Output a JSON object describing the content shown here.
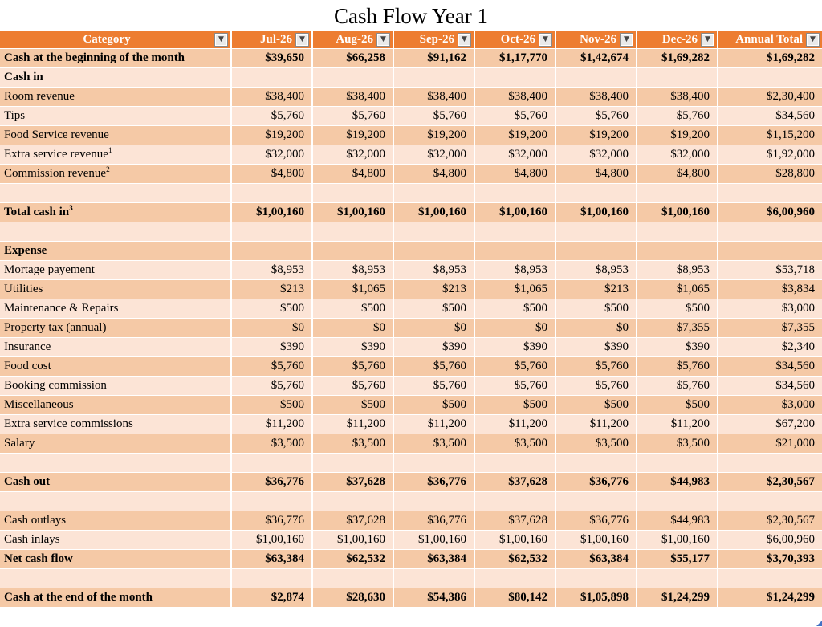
{
  "title": "Cash Flow Year 1",
  "colors": {
    "header_bg": "#ED7D31",
    "band_dark": "#F5C9A6",
    "band_light": "#FCE4D6",
    "handle_blue": "#4472C4"
  },
  "table": {
    "filter_icon": "▼",
    "columns": [
      "Category",
      "Jul-26",
      "Aug-26",
      "Sep-26",
      "Oct-26",
      "Nov-26",
      "Dec-26",
      "Annual Total"
    ],
    "rows": [
      {
        "label": "Cash at the beginning of the month",
        "bold": true,
        "values": [
          "$39,650",
          "$66,258",
          "$91,162",
          "$1,17,770",
          "$1,42,674",
          "$1,69,282",
          "$1,69,282"
        ]
      },
      {
        "label": "Cash in",
        "bold": true,
        "values": []
      },
      {
        "label": "Room revenue",
        "bold": false,
        "values": [
          "$38,400",
          "$38,400",
          "$38,400",
          "$38,400",
          "$38,400",
          "$38,400",
          "$2,30,400"
        ]
      },
      {
        "label": "Tips",
        "bold": false,
        "values": [
          "$5,760",
          "$5,760",
          "$5,760",
          "$5,760",
          "$5,760",
          "$5,760",
          "$34,560"
        ]
      },
      {
        "label": "Food Service revenue",
        "bold": false,
        "values": [
          "$19,200",
          "$19,200",
          "$19,200",
          "$19,200",
          "$19,200",
          "$19,200",
          "$1,15,200"
        ]
      },
      {
        "label": "Extra service revenue",
        "sup": "1",
        "bold": false,
        "values": [
          "$32,000",
          "$32,000",
          "$32,000",
          "$32,000",
          "$32,000",
          "$32,000",
          "$1,92,000"
        ]
      },
      {
        "label": "Commission revenue",
        "sup": "2",
        "bold": false,
        "values": [
          "$4,800",
          "$4,800",
          "$4,800",
          "$4,800",
          "$4,800",
          "$4,800",
          "$28,800"
        ]
      },
      {
        "label": "",
        "values": []
      },
      {
        "label": "Total cash in",
        "sup": "3",
        "bold": true,
        "values": [
          "$1,00,160",
          "$1,00,160",
          "$1,00,160",
          "$1,00,160",
          "$1,00,160",
          "$1,00,160",
          "$6,00,960"
        ]
      },
      {
        "label": "",
        "values": []
      },
      {
        "label": "Expense",
        "bold": true,
        "values": []
      },
      {
        "label": "Mortage payement",
        "bold": false,
        "values": [
          "$8,953",
          "$8,953",
          "$8,953",
          "$8,953",
          "$8,953",
          "$8,953",
          "$53,718"
        ]
      },
      {
        "label": "Utilities",
        "bold": false,
        "values": [
          "$213",
          "$1,065",
          "$213",
          "$1,065",
          "$213",
          "$1,065",
          "$3,834"
        ]
      },
      {
        "label": "Maintenance & Repairs",
        "bold": false,
        "values": [
          "$500",
          "$500",
          "$500",
          "$500",
          "$500",
          "$500",
          "$3,000"
        ]
      },
      {
        "label": "Property tax (annual)",
        "bold": false,
        "values": [
          "$0",
          "$0",
          "$0",
          "$0",
          "$0",
          "$7,355",
          "$7,355"
        ]
      },
      {
        "label": "Insurance",
        "bold": false,
        "values": [
          "$390",
          "$390",
          "$390",
          "$390",
          "$390",
          "$390",
          "$2,340"
        ]
      },
      {
        "label": "Food cost",
        "bold": false,
        "values": [
          "$5,760",
          "$5,760",
          "$5,760",
          "$5,760",
          "$5,760",
          "$5,760",
          "$34,560"
        ]
      },
      {
        "label": "Booking commission",
        "bold": false,
        "values": [
          "$5,760",
          "$5,760",
          "$5,760",
          "$5,760",
          "$5,760",
          "$5,760",
          "$34,560"
        ]
      },
      {
        "label": "Miscellaneous",
        "bold": false,
        "values": [
          "$500",
          "$500",
          "$500",
          "$500",
          "$500",
          "$500",
          "$3,000"
        ]
      },
      {
        "label": "Extra service commissions",
        "bold": false,
        "values": [
          "$11,200",
          "$11,200",
          "$11,200",
          "$11,200",
          "$11,200",
          "$11,200",
          "$67,200"
        ]
      },
      {
        "label": "Salary",
        "bold": false,
        "values": [
          "$3,500",
          "$3,500",
          "$3,500",
          "$3,500",
          "$3,500",
          "$3,500",
          "$21,000"
        ]
      },
      {
        "label": "",
        "values": []
      },
      {
        "label": "Cash out",
        "bold": true,
        "values": [
          "$36,776",
          "$37,628",
          "$36,776",
          "$37,628",
          "$36,776",
          "$44,983",
          "$2,30,567"
        ]
      },
      {
        "label": "",
        "values": []
      },
      {
        "label": "Cash outlays",
        "bold": false,
        "values": [
          "$36,776",
          "$37,628",
          "$36,776",
          "$37,628",
          "$36,776",
          "$44,983",
          "$2,30,567"
        ]
      },
      {
        "label": "Cash inlays",
        "bold": false,
        "values": [
          "$1,00,160",
          "$1,00,160",
          "$1,00,160",
          "$1,00,160",
          "$1,00,160",
          "$1,00,160",
          "$6,00,960"
        ]
      },
      {
        "label": "Net cash flow",
        "bold": true,
        "values": [
          "$63,384",
          "$62,532",
          "$63,384",
          "$62,532",
          "$63,384",
          "$55,177",
          "$3,70,393"
        ]
      },
      {
        "label": "",
        "values": []
      },
      {
        "label": "Cash at the end of the month",
        "bold": true,
        "values": [
          "$2,874",
          "$28,630",
          "$54,386",
          "$80,142",
          "$1,05,898",
          "$1,24,299",
          "$1,24,299"
        ]
      }
    ]
  }
}
